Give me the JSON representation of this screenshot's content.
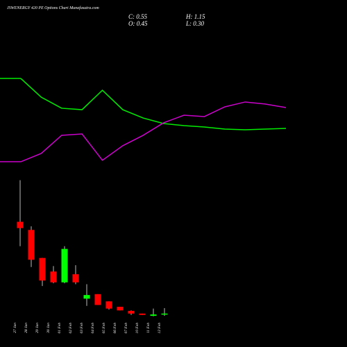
{
  "chart_data": {
    "type": "candlestick",
    "title": "JSWENERGY 420 PE Options Chart Munafasutra.com",
    "summary": {
      "close": "C: 0.55",
      "high": "H: 1.15",
      "open": "O: 0.45",
      "low": "L: 0.30"
    },
    "categories": [
      "27 Jan",
      "28 Jan",
      "29 Jan",
      "30 Jan",
      "01 Feb",
      "02 Feb",
      "03 Feb",
      "04 Feb",
      "05 Feb",
      "06 Feb",
      "07 Feb",
      "10 Feb",
      "11 Feb",
      "12 Feb"
    ],
    "open": [
      10.7,
      9.8,
      6.7,
      5.2,
      4.0,
      4.9,
      2.2,
      2.7,
      1.9,
      1.3,
      0.85,
      0.55,
      0.3,
      0.45
    ],
    "close": [
      10.0,
      6.5,
      4.2,
      4.0,
      7.7,
      4.0,
      2.6,
      1.5,
      1.1,
      0.9,
      0.55,
      0.4,
      0.45,
      0.55
    ],
    "high": [
      15.3,
      10.2,
      6.7,
      5.8,
      8.0,
      5.9,
      3.8,
      2.7,
      1.9,
      1.3,
      0.9,
      0.55,
      1.1,
      1.15
    ],
    "low": [
      8.0,
      5.7,
      3.6,
      3.9,
      3.9,
      3.8,
      1.4,
      1.5,
      1.0,
      0.9,
      0.4,
      0.4,
      0.25,
      0.3
    ],
    "up_color": "#00ff00",
    "down_color": "#ff0000",
    "ylim": [
      0,
      15.5
    ],
    "series": [
      {
        "color": "#00ee00",
        "values": [
          91.3,
          73.3,
          62.7,
          61.3,
          80,
          61.3,
          53.3,
          48,
          46,
          44.7,
          42.7,
          42,
          42.7,
          43.3
        ]
      },
      {
        "color": "#cc00cc",
        "values": [
          11.3,
          19.3,
          36.7,
          38,
          12.7,
          26.7,
          36.7,
          48.7,
          56,
          54.7,
          64,
          68.7,
          66.7,
          63.3
        ]
      }
    ],
    "y2lim": [
      0,
      100
    ]
  }
}
